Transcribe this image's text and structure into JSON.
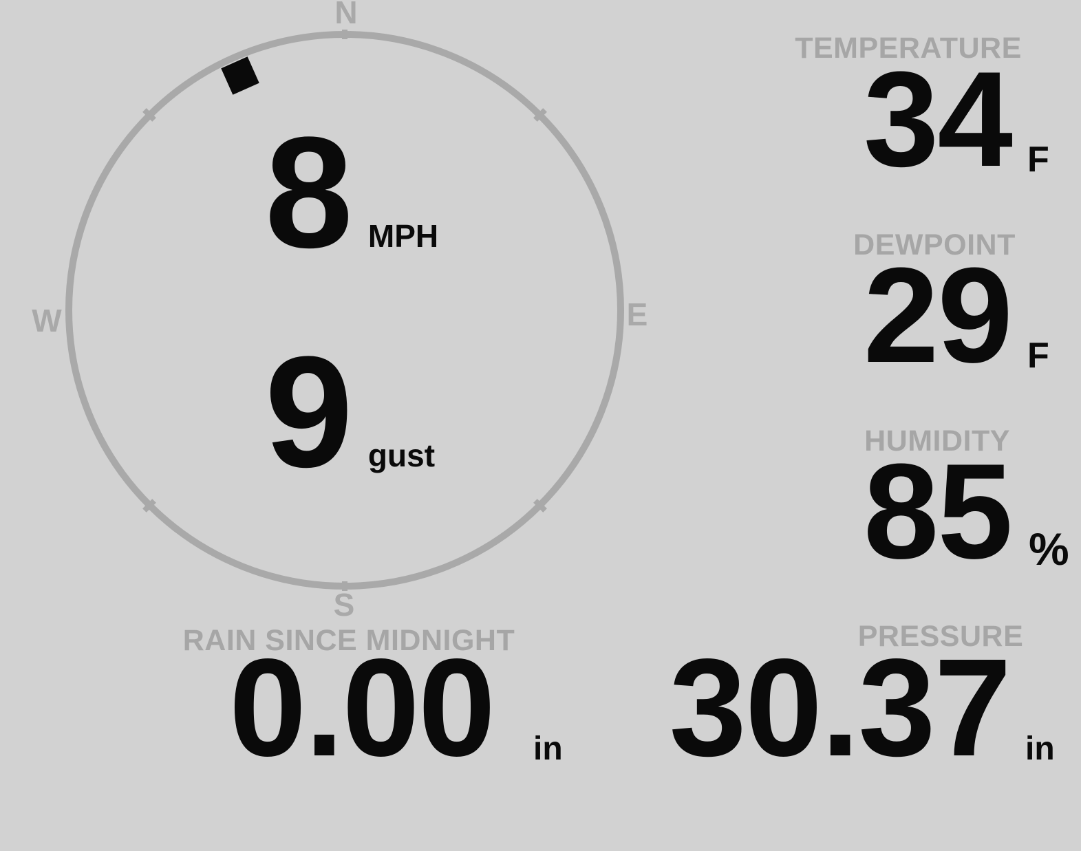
{
  "theme": {
    "bg": "#d2d2d2",
    "dial": "#a9a9a9",
    "label": "#a6a6a6",
    "value": "#0a0a0a"
  },
  "wind": {
    "speed": "8",
    "speed_unit": "MPH",
    "gust": "9",
    "gust_unit": "gust",
    "direction_deg": 336,
    "compass": {
      "north": "N",
      "east": "E",
      "south": "S",
      "west": "W"
    },
    "dial_tick_bearings": [
      0,
      45,
      135,
      180,
      225,
      315
    ]
  },
  "stats": {
    "temperature": {
      "label": "TEMPERATURE",
      "value": "34",
      "unit": "F"
    },
    "dewpoint": {
      "label": "DEWPOINT",
      "value": "29",
      "unit": "F"
    },
    "humidity": {
      "label": "HUMIDITY",
      "value": "85",
      "unit": "%"
    },
    "rain": {
      "label": "RAIN SINCE MIDNIGHT",
      "value": "0.00",
      "unit": "in"
    },
    "pressure": {
      "label": "PRESSURE",
      "value": "30.37",
      "unit": "in"
    }
  }
}
